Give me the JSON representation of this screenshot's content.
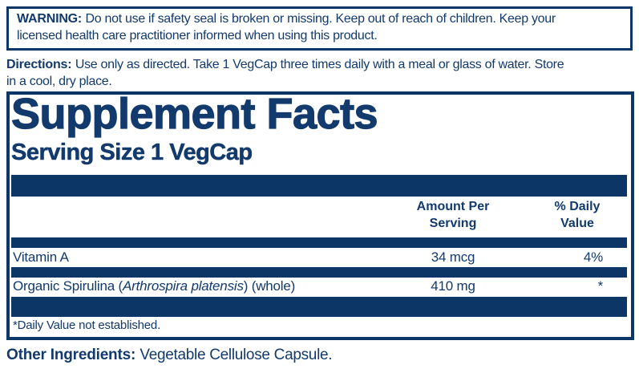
{
  "colors": {
    "navy_text": "#123a6c",
    "navy_bar": "#0b3666",
    "background": "#ffffff"
  },
  "warning": {
    "label": "WARNING:",
    "line1": "Do not use if safety seal is broken or missing. Keep out of reach of children. Keep your",
    "line2": "licensed health care practitioner informed when using this product."
  },
  "directions": {
    "label": "Directions:",
    "line1": "Use only as directed. Take 1 VegCap three times daily with a meal or glass of water. Store",
    "line2": "in a cool, dry place."
  },
  "supplement_facts": {
    "title": "Supplement Facts",
    "serving_size": "Serving Size 1 VegCap",
    "columns": {
      "amount_header": "Amount Per\nServing",
      "daily_value_header": "% Daily\nValue"
    },
    "rows": [
      {
        "name_pre": "Vitamin A",
        "name_italic": "",
        "name_post": "",
        "amount": "34 mcg",
        "daily_value": "4%"
      },
      {
        "name_pre": "Organic Spirulina (",
        "name_italic": "Arthrospira platensis",
        "name_post": ") (whole)",
        "amount": "410 mg",
        "daily_value": "*"
      }
    ],
    "footnote": "*Daily Value not established."
  },
  "other_ingredients": {
    "label": "Other Ingredients:",
    "text": "Vegetable Cellulose Capsule."
  }
}
